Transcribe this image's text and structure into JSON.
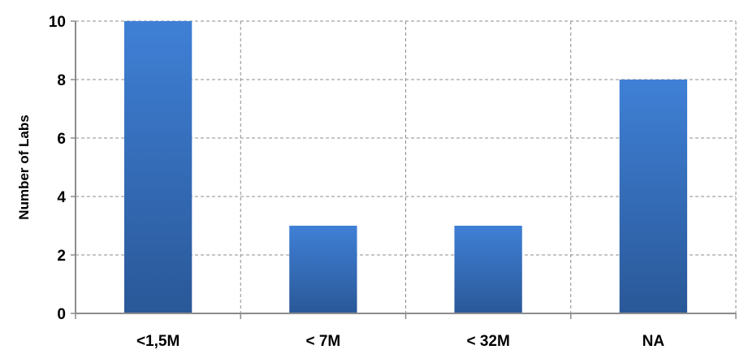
{
  "chart_data": {
    "type": "bar",
    "title": "",
    "xlabel": "",
    "ylabel": "Number of Labs",
    "categories": [
      "<1,5M",
      "< 7M",
      "< 32M",
      "NA"
    ],
    "values": [
      10,
      3,
      3,
      8
    ],
    "ylim": [
      0,
      10
    ],
    "yticks": [
      "0",
      "2",
      "4",
      "6",
      "8",
      "10"
    ],
    "grid": true,
    "legend": "none",
    "colors": {
      "bar_top": "#3f80d6",
      "bar_bottom": "#2a5898",
      "grid": "#8c8c8c",
      "axis": "#8c8c8c"
    }
  }
}
